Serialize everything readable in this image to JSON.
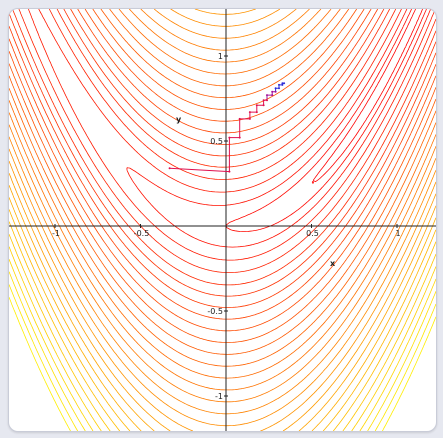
{
  "chart_data": {
    "type": "line",
    "title": "",
    "xlabel": "x",
    "ylabel": "y",
    "xlim": [
      -1.2,
      1.2
    ],
    "ylim": [
      -1.2,
      1.2
    ],
    "grid": false,
    "x_ticks": [
      {
        "value": -1,
        "label": "-1"
      },
      {
        "value": -0.5,
        "label": "-0.5"
      },
      {
        "value": 0.5,
        "label": "0.5"
      },
      {
        "value": 1,
        "label": "1"
      }
    ],
    "y_ticks": [
      {
        "value": 1,
        "label": "1"
      },
      {
        "value": 0.5,
        "label": "0.5"
      },
      {
        "value": -0.5,
        "label": "-0.5"
      },
      {
        "value": -1,
        "label": "-1"
      }
    ],
    "contour_function": "(1 - x)^2 + 100 (y - x^2)^2",
    "contour_levels": [
      0.25,
      1,
      2.5,
      5,
      8.5,
      13,
      18,
      24,
      31,
      39,
      48,
      58,
      69,
      81,
      94,
      108,
      123,
      139,
      156,
      174,
      193,
      213,
      234,
      256,
      280,
      305,
      331,
      358,
      387,
      417
    ],
    "contour_colors": {
      "low": "#ff0000",
      "high": "#ffee00"
    },
    "series": [
      {
        "color": "#e0104f",
        "points": [
          [
            -0.33,
            0.34
          ],
          [
            0.02,
            0.32
          ],
          [
            0.02,
            0.52
          ],
          [
            0.08,
            0.52
          ],
          [
            0.08,
            0.63
          ],
          [
            0.14,
            0.63
          ],
          [
            0.14,
            0.67
          ],
          [
            0.18,
            0.67
          ],
          [
            0.18,
            0.71
          ],
          [
            0.22,
            0.71
          ],
          [
            0.22,
            0.74
          ],
          [
            0.24,
            0.74
          ],
          [
            0.24,
            0.77
          ],
          [
            0.27,
            0.77
          ],
          [
            0.27,
            0.79
          ],
          [
            0.29,
            0.79
          ],
          [
            0.29,
            0.81
          ],
          [
            0.31,
            0.81
          ],
          [
            0.31,
            0.83
          ],
          [
            0.33,
            0.83
          ],
          [
            0.33,
            0.84
          ],
          [
            0.34,
            0.84
          ]
        ]
      }
    ]
  }
}
